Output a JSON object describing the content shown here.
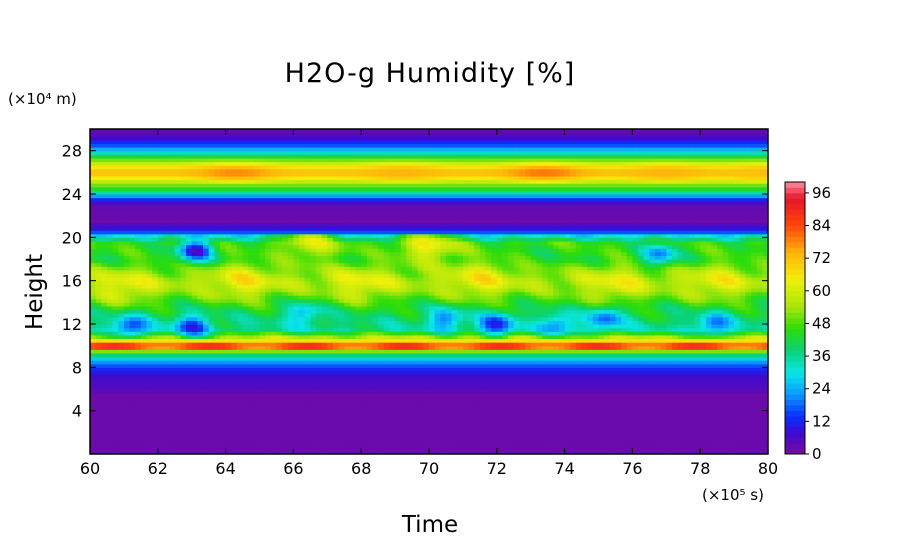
{
  "chart_data": {
    "type": "heatmap",
    "title": "H2O-g Humidity [%]",
    "xlabel": "Time",
    "ylabel": "Height",
    "x_unit": "(×10⁵ s)",
    "y_unit": "(×10⁴ m)",
    "xlim": [
      60,
      80
    ],
    "ylim": [
      0,
      30
    ],
    "x_ticks": [
      60,
      62,
      64,
      66,
      68,
      70,
      72,
      74,
      76,
      78,
      80
    ],
    "y_ticks": [
      4,
      8,
      12,
      16,
      20,
      24,
      28
    ],
    "colorbar": {
      "range": [
        0,
        100
      ],
      "ticks": [
        0,
        12,
        24,
        36,
        48,
        60,
        72,
        84,
        96
      ],
      "colors": [
        "#7a0aa0",
        "#3c0ad2",
        "#0a30ff",
        "#0a9aff",
        "#0ae6e6",
        "#0ad278",
        "#2adc0a",
        "#a6e60a",
        "#f0f00a",
        "#ffb40a",
        "#ff460a",
        "#e61428",
        "#ff8ca0"
      ],
      "stops": [
        0,
        8,
        14,
        22,
        30,
        38,
        46,
        54,
        64,
        74,
        84,
        94,
        100
      ]
    },
    "humidity_profile": [
      {
        "height": 0,
        "value": 2
      },
      {
        "height": 5.6,
        "value": 2
      },
      {
        "height": 6.0,
        "value": 5
      },
      {
        "height": 7.2,
        "value": 7
      },
      {
        "height": 8.0,
        "value": 14
      },
      {
        "height": 8.8,
        "value": 26
      },
      {
        "height": 9.4,
        "value": 45
      },
      {
        "height": 9.8,
        "value": 70
      },
      {
        "height": 10.2,
        "value": 80
      },
      {
        "height": 10.6,
        "value": 62
      },
      {
        "height": 11.5,
        "value": 36
      },
      {
        "height": 13.5,
        "value": 42
      },
      {
        "height": 16,
        "value": 56
      },
      {
        "height": 18,
        "value": 44
      },
      {
        "height": 19.5,
        "value": 46
      },
      {
        "height": 20.2,
        "value": 30
      },
      {
        "height": 20.6,
        "value": 12
      },
      {
        "height": 21.5,
        "value": 2
      },
      {
        "height": 23.0,
        "value": 3
      },
      {
        "height": 23.6,
        "value": 14
      },
      {
        "height": 24.3,
        "value": 40
      },
      {
        "height": 25.2,
        "value": 58
      },
      {
        "height": 26.0,
        "value": 74
      },
      {
        "height": 26.8,
        "value": 60
      },
      {
        "height": 27.6,
        "value": 40
      },
      {
        "height": 28.4,
        "value": 18
      },
      {
        "height": 29.3,
        "value": 6
      },
      {
        "height": 30,
        "value": 2
      }
    ],
    "upper_peaks": [
      {
        "x": 64.3,
        "value": 78
      },
      {
        "x": 69.2,
        "value": 74
      },
      {
        "x": 73.4,
        "value": 80
      },
      {
        "x": 77.0,
        "value": 74
      },
      {
        "x": 79.9,
        "value": 72
      }
    ],
    "dry_patches_mid_layer": [
      {
        "x": 61.2,
        "y": 11.8,
        "value": 14
      },
      {
        "x": 63.0,
        "y": 11.8,
        "value": 12
      },
      {
        "x": 63.1,
        "y": 18.8,
        "value": 8
      },
      {
        "x": 66.3,
        "y": 13.0,
        "value": 24
      },
      {
        "x": 70.5,
        "y": 12.5,
        "value": 20
      },
      {
        "x": 72.0,
        "y": 12.0,
        "value": 12
      },
      {
        "x": 73.8,
        "y": 12.0,
        "value": 20
      },
      {
        "x": 75.2,
        "y": 12.5,
        "value": 18
      },
      {
        "x": 76.8,
        "y": 18.5,
        "value": 20
      },
      {
        "x": 78.4,
        "y": 12.0,
        "value": 18
      }
    ],
    "moist_patches_mid_layer": [
      {
        "x": 61.0,
        "y": 15.5,
        "value": 64
      },
      {
        "x": 64.5,
        "y": 16.0,
        "value": 66
      },
      {
        "x": 68.0,
        "y": 15.8,
        "value": 64
      },
      {
        "x": 71.5,
        "y": 16.2,
        "value": 66
      },
      {
        "x": 75.5,
        "y": 15.8,
        "value": 64
      },
      {
        "x": 78.5,
        "y": 16.0,
        "value": 64
      },
      {
        "x": 66.5,
        "y": 19.5,
        "value": 62
      },
      {
        "x": 70.0,
        "y": 19.2,
        "value": 66
      }
    ],
    "cloud_base_band": {
      "height": 10.0,
      "value": 86
    }
  }
}
